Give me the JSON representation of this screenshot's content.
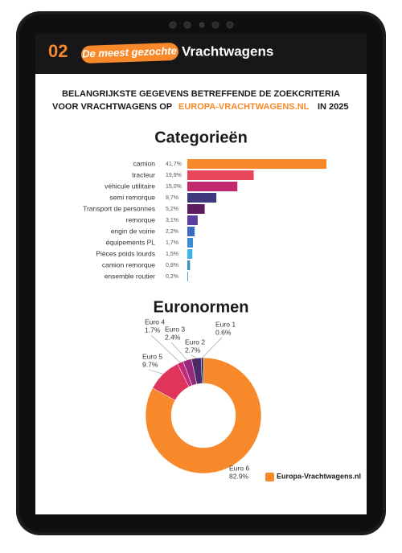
{
  "header": {
    "number": "02",
    "highlight": "De meest gezochte",
    "title": "Vrachtwagens"
  },
  "subtitle": {
    "line1": "BELANGRIJKSTE GEGEVENS BETREFFENDE DE ZOEKCRITERIA",
    "line2_start": "VOOR VRACHTWAGENS OP",
    "line2_site": "EUROPA-VRACHTWAGENS.NL",
    "line2_end": "IN 2025"
  },
  "chart_data": [
    {
      "type": "bar",
      "title": "Categorieën",
      "categories": [
        "camion",
        "tracteur",
        "véhicule utilitaire",
        "semi remorque",
        "Transport de personnes",
        "remorque",
        "engin de voirie",
        "équipements PL",
        "Pièces poids lourds",
        "camion remorque",
        "ensemble routier"
      ],
      "values": [
        41.7,
        19.9,
        15.0,
        8.7,
        5.2,
        3.1,
        2.2,
        1.7,
        1.5,
        0.8,
        0.2
      ],
      "value_labels": [
        "41,7%",
        "19,9%",
        "15,0%",
        "8,7%",
        "5,2%",
        "3,1%",
        "2,2%",
        "1,7%",
        "1,5%",
        "0,8%",
        "0,2%"
      ],
      "colors": [
        "#f7892a",
        "#e8455a",
        "#c2286e",
        "#3f3a7e",
        "#5c1d5e",
        "#5a3f9e",
        "#3b6cc4",
        "#3a8ad6",
        "#3cb2e6",
        "#3a8fc2",
        "#3a8fc2"
      ]
    },
    {
      "type": "pie",
      "title": "Euronormen",
      "categories": [
        "Euro 6",
        "Euro 5",
        "Euro 4",
        "Euro 3",
        "Euro 2",
        "Euro 1"
      ],
      "values": [
        82.9,
        9.7,
        1.7,
        2.4,
        2.7,
        0.6
      ],
      "value_labels": [
        "82.9%",
        "9.7%",
        "1.7%",
        "2.4%",
        "2.7%",
        "0.6%"
      ],
      "colors": [
        "#f7892a",
        "#e0355a",
        "#c42a7c",
        "#962a7a",
        "#4a2a68",
        "#2a2a5a"
      ]
    }
  ],
  "logo": {
    "name": "Europa-Vrachtwagens.nl"
  }
}
